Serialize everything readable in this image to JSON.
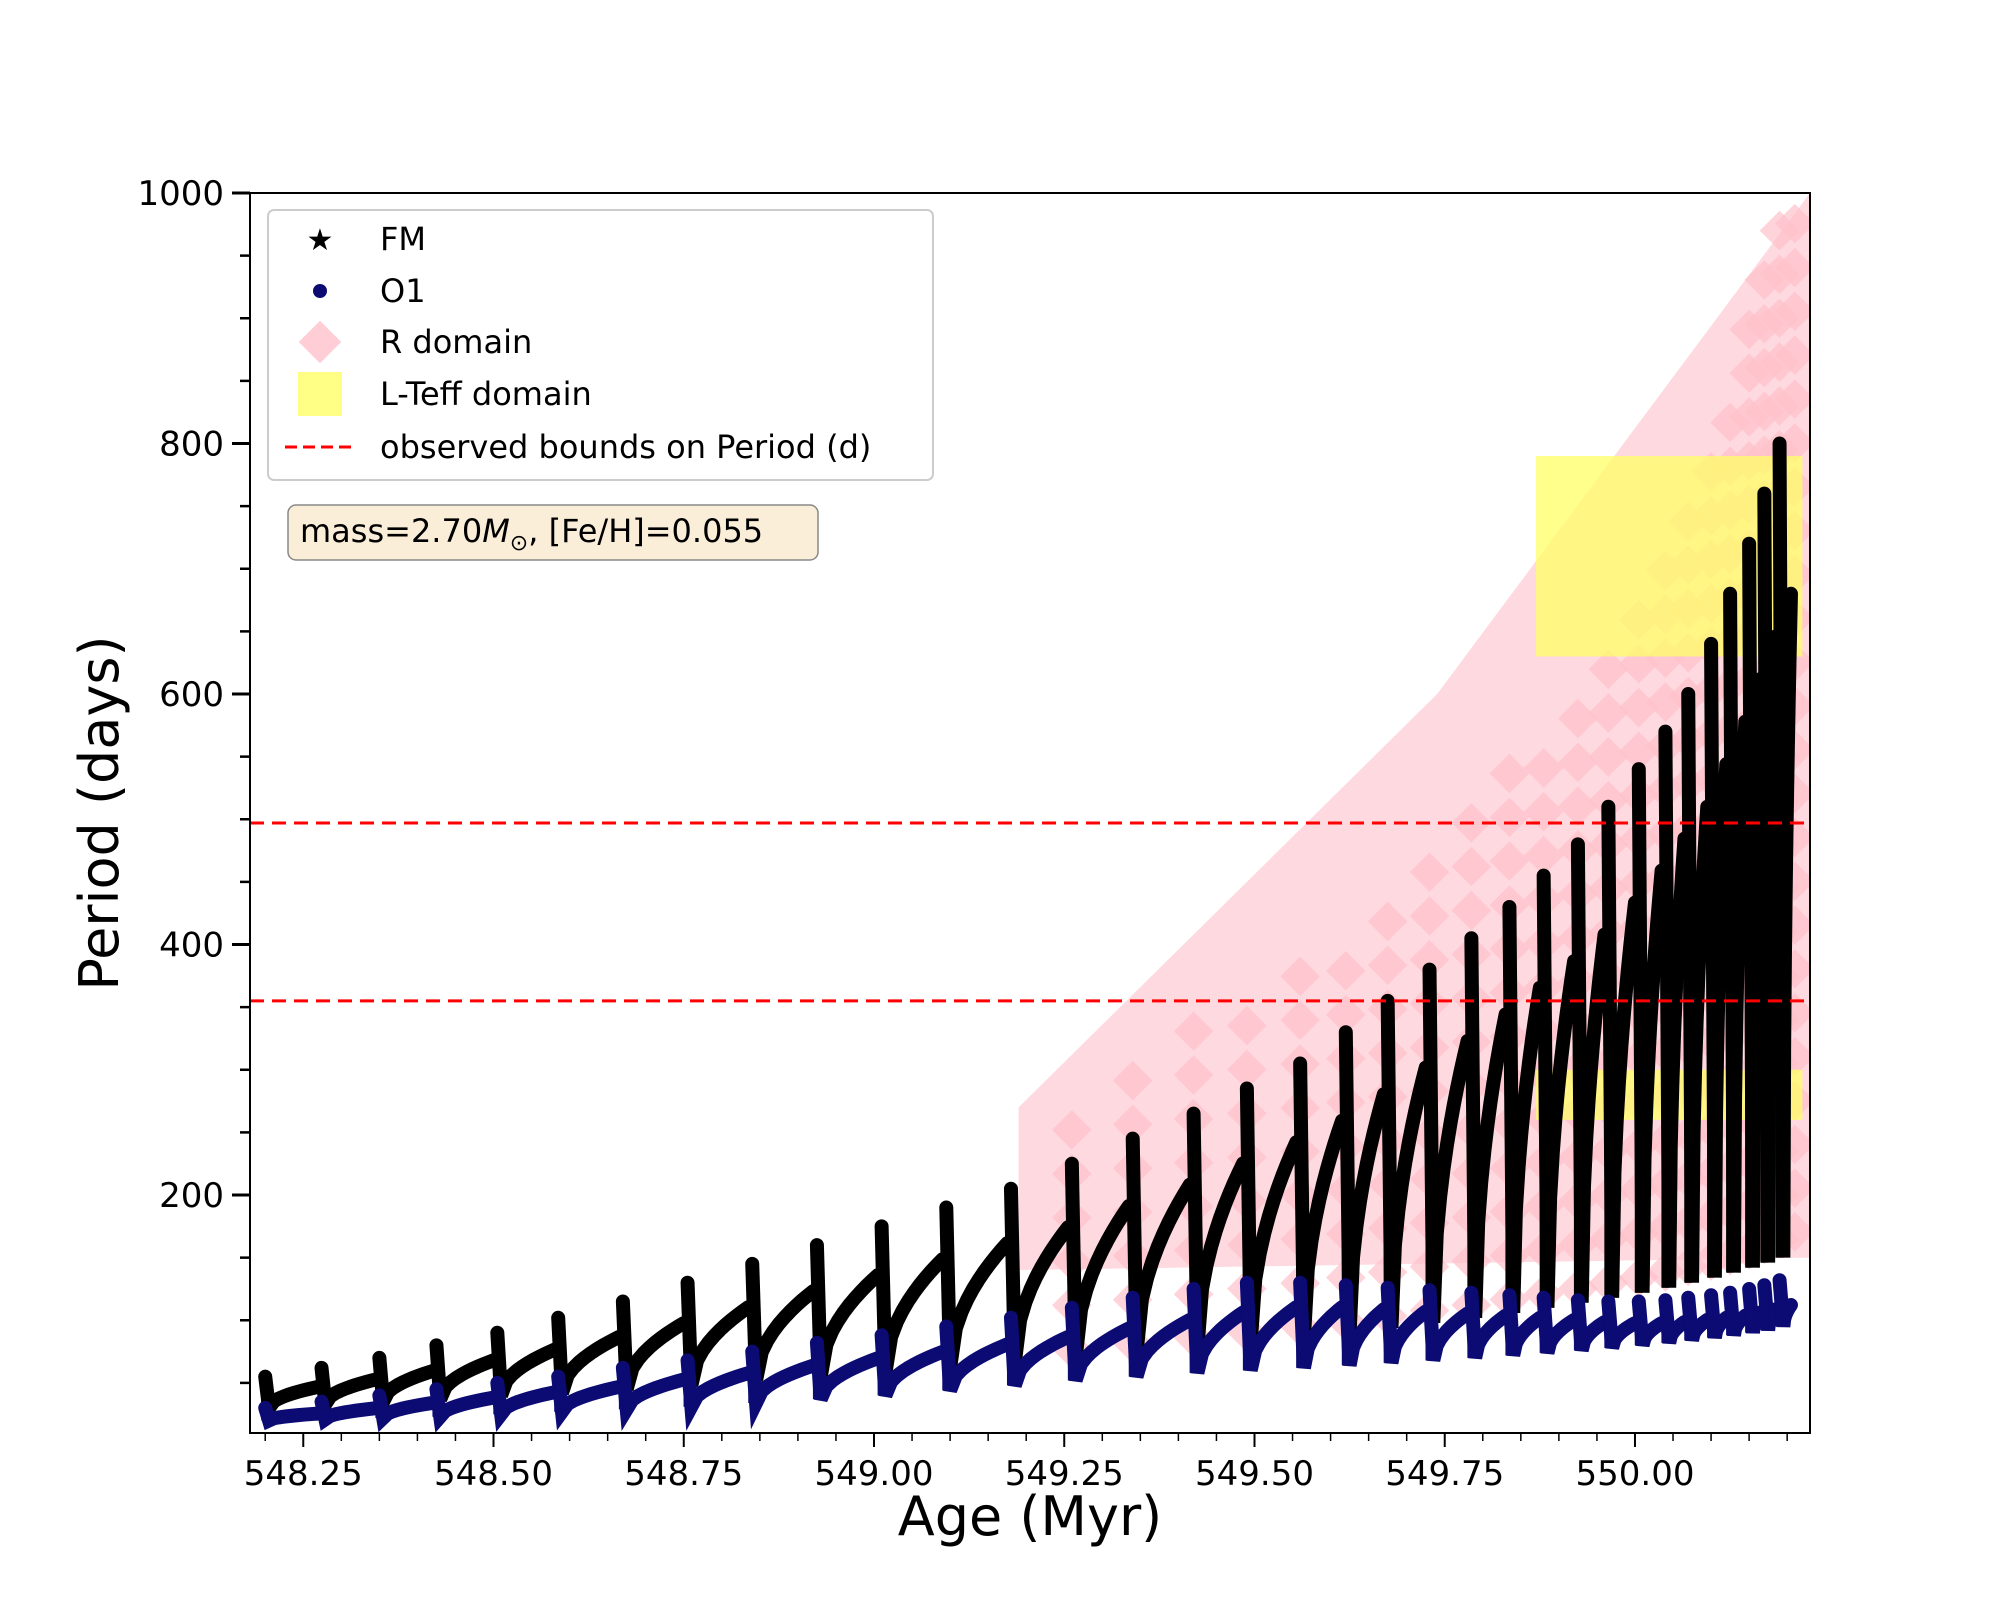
{
  "chart_data": {
    "type": "scatter",
    "title": "",
    "xlabel": "Age (Myr)",
    "ylabel": "Period (days)",
    "xlim": [
      548.18,
      550.23
    ],
    "ylim": [
      10,
      1000
    ],
    "x_ticks": [
      "548.25",
      "548.50",
      "548.75",
      "549.00",
      "549.25",
      "549.50",
      "549.75",
      "550.00"
    ],
    "y_ticks": [
      "200",
      "400",
      "600",
      "800",
      "1000"
    ],
    "grid": false,
    "legend": {
      "position": "top-left",
      "entries": [
        {
          "label": "FM",
          "marker": "star",
          "color": "#000000"
        },
        {
          "label": "O1",
          "marker": "circle",
          "color": "#0b0b73"
        },
        {
          "label": "R domain",
          "marker": "diamond",
          "color": "#ffc0cb"
        },
        {
          "label": "L-Teff domain",
          "marker": "square",
          "color": "#ffff66"
        },
        {
          "label": "observed bounds on Period (d)",
          "marker": "dashed-line",
          "color": "#ff0000"
        }
      ]
    },
    "annotation": {
      "prefix": "mass=2.70",
      "symbol": "M",
      "subscript": "⊙",
      "suffix": ", [Fe/H]=0.055"
    },
    "hlines": [
      {
        "y": 355,
        "color": "#ff0000",
        "style": "dashed"
      },
      {
        "y": 497,
        "color": "#ff0000",
        "style": "dashed"
      }
    ],
    "pulse_ages": [
      548.2,
      548.274,
      548.35,
      548.425,
      548.505,
      548.585,
      548.67,
      548.755,
      548.84,
      548.925,
      549.01,
      549.095,
      549.18,
      549.26,
      549.34,
      549.42,
      549.49,
      549.56,
      549.62,
      549.675,
      549.73,
      549.785,
      549.835,
      549.88,
      549.925,
      549.965,
      550.005,
      550.04,
      550.07,
      550.1,
      550.125,
      550.15,
      550.17,
      550.19,
      550.21
    ],
    "series": [
      {
        "name": "FM",
        "color": "#000000",
        "marker": "star",
        "peaks": [
          55,
          62,
          70,
          80,
          90,
          102,
          115,
          130,
          145,
          160,
          175,
          190,
          205,
          225,
          245,
          265,
          285,
          305,
          330,
          355,
          380,
          405,
          430,
          455,
          480,
          510,
          540,
          570,
          600,
          640,
          680,
          720,
          760,
          800,
          840
        ],
        "troughs": [
          30,
          33,
          35,
          37,
          40,
          42,
          45,
          48,
          52,
          55,
          58,
          62,
          66,
          70,
          74,
          78,
          82,
          86,
          90,
          94,
          98,
          102,
          106,
          110,
          114,
          118,
          122,
          126,
          130,
          134,
          138,
          142,
          146,
          150,
          155
        ]
      },
      {
        "name": "O1",
        "color": "#0b0b73",
        "marker": "circle",
        "peaks": [
          30,
          35,
          40,
          45,
          50,
          55,
          62,
          68,
          75,
          82,
          88,
          95,
          102,
          110,
          118,
          125,
          130,
          130,
          128,
          126,
          124,
          122,
          120,
          118,
          116,
          115,
          115,
          116,
          118,
          120,
          122,
          125,
          128,
          132,
          136
        ],
        "troughs": [
          20,
          21,
          22,
          23,
          25,
          27,
          29,
          31,
          34,
          37,
          40,
          44,
          48,
          52,
          55,
          58,
          60,
          62,
          64,
          66,
          68,
          70,
          72,
          74,
          76,
          78,
          80,
          82,
          84,
          86,
          88,
          90,
          92,
          95,
          100
        ]
      },
      {
        "name": "R domain",
        "color": "#ffc0cb",
        "marker": "diamond",
        "region": {
          "x_start": 549.19,
          "x_end": 550.23,
          "lower_start": 140,
          "lower_end": 150,
          "upper_start": 270,
          "upper_end": 1000
        }
      },
      {
        "name": "L-Teff domain",
        "color": "#ffff66",
        "marker": "square",
        "regions": [
          {
            "x": [
              549.87,
              550.22
            ],
            "y": [
              260,
              300
            ]
          },
          {
            "x": [
              549.87,
              550.22
            ],
            "y": [
              630,
              790
            ]
          }
        ]
      }
    ]
  }
}
